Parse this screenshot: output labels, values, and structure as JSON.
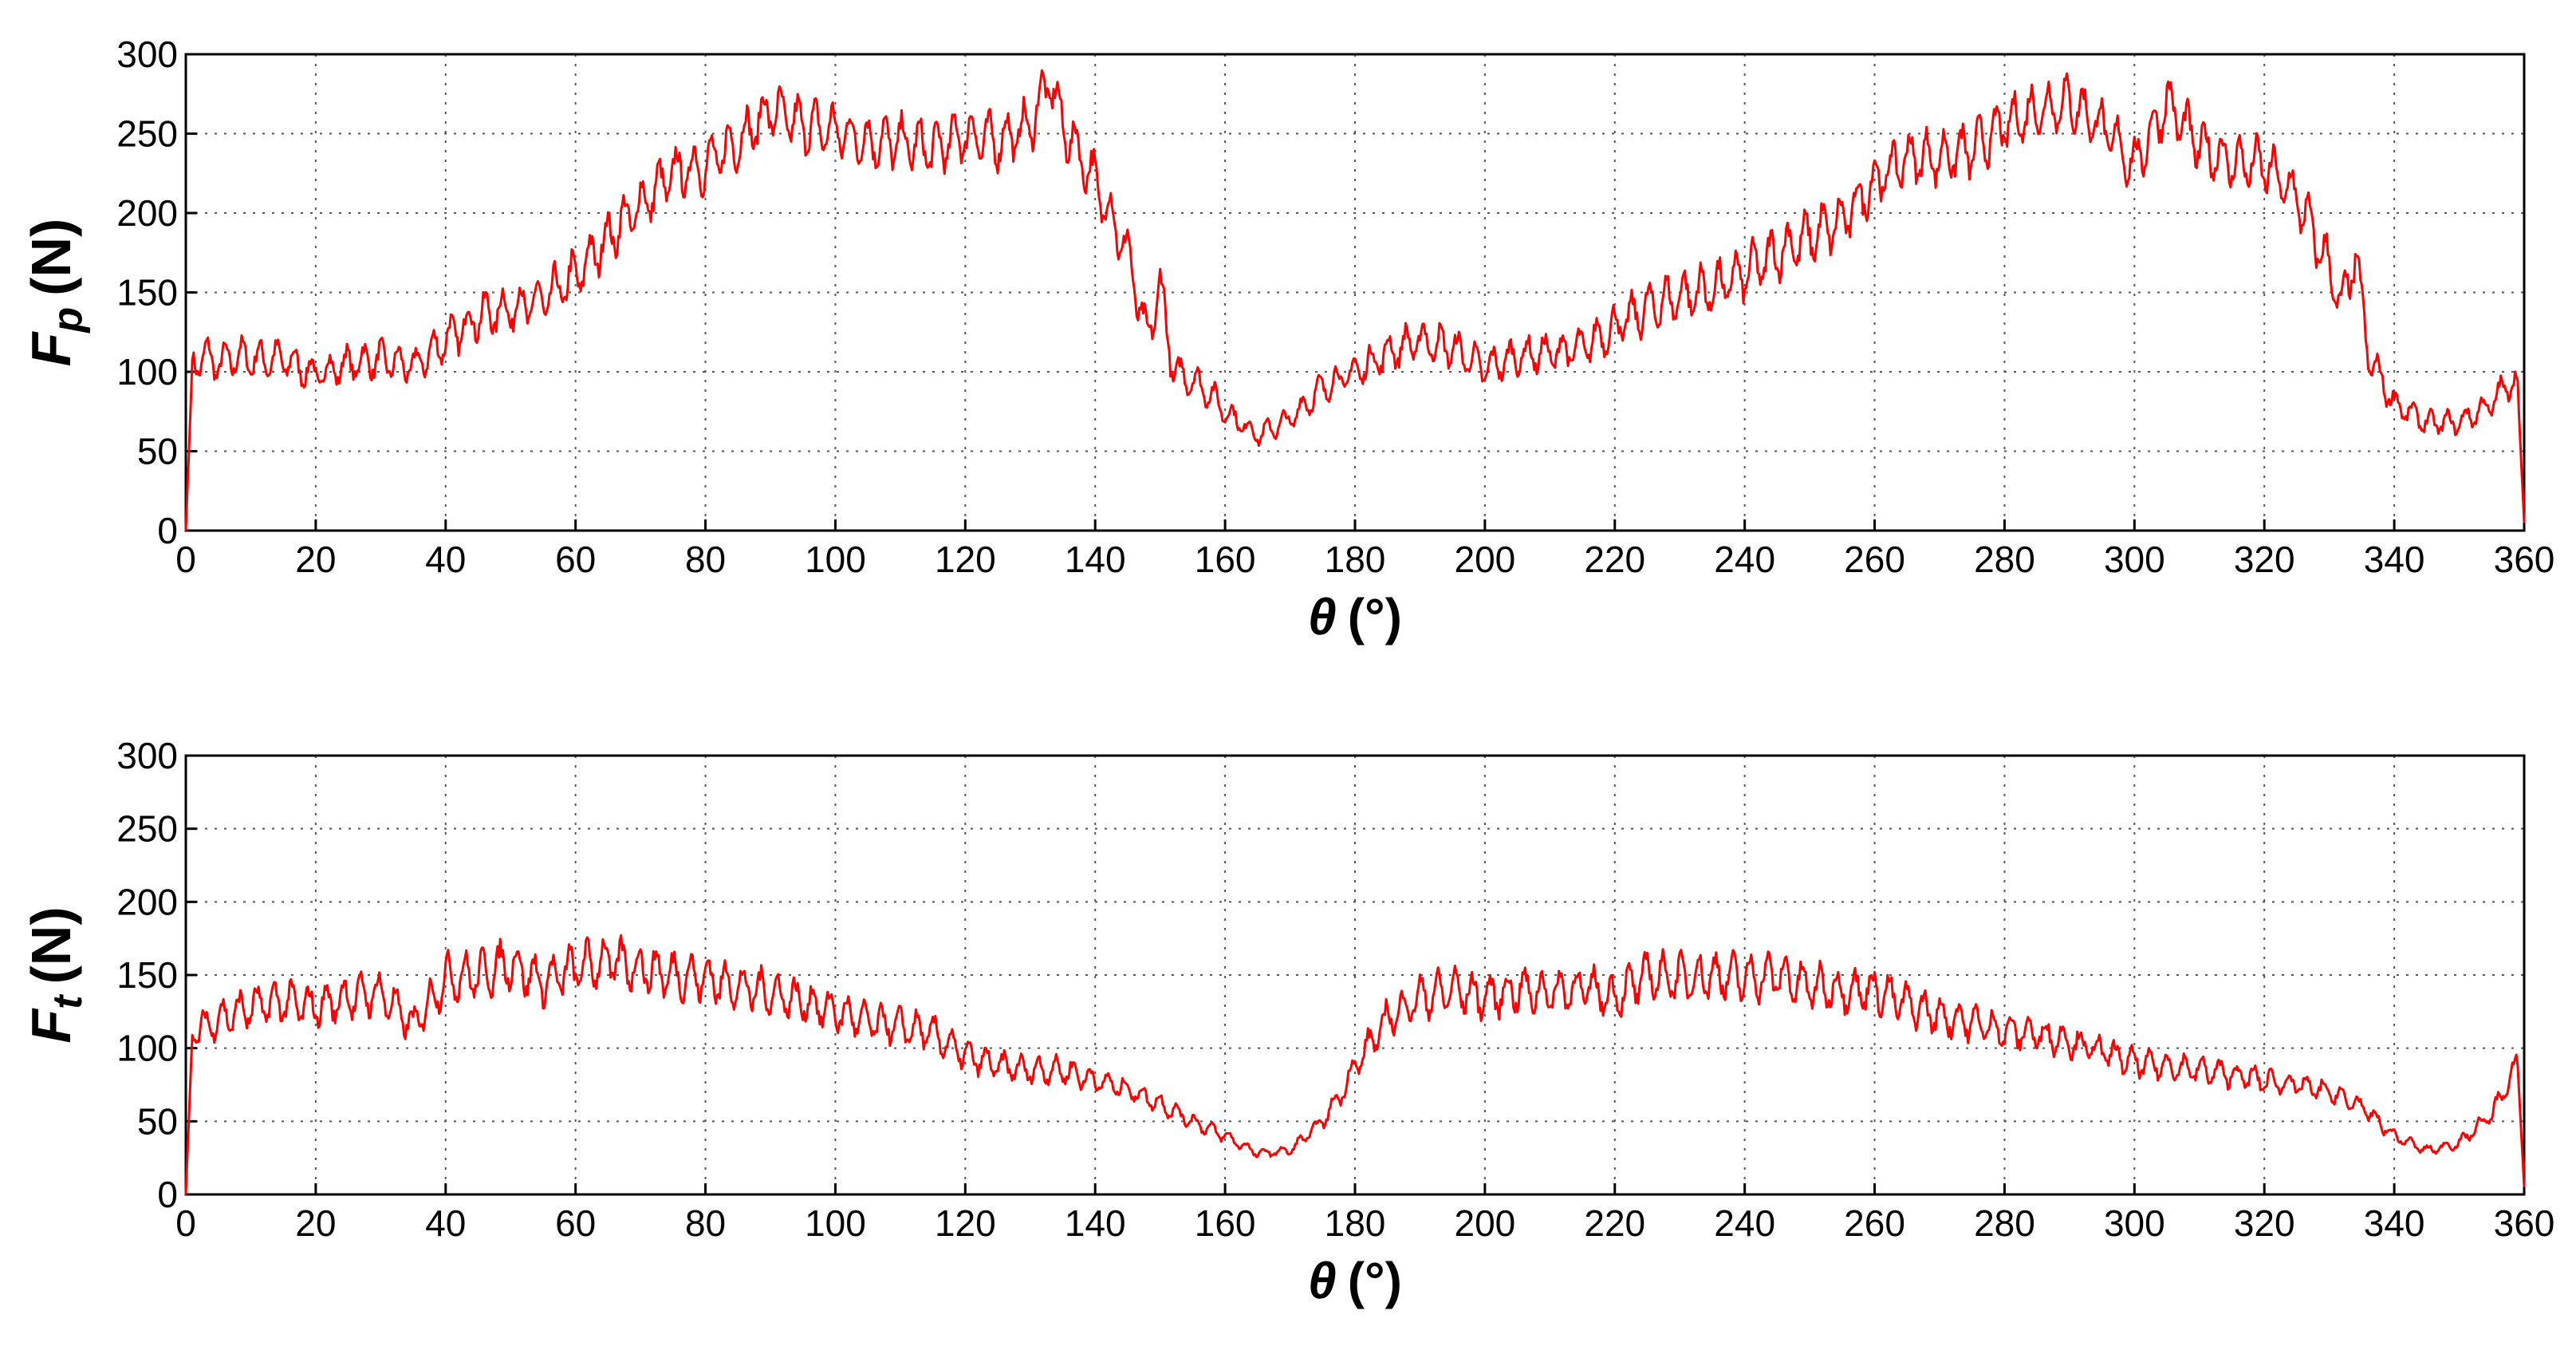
{
  "chart_data": [
    {
      "type": "line",
      "ylabel_main": "F",
      "ylabel_sub": "p",
      "ylabel_unit": "(N)",
      "xlabel_symbol": "θ",
      "xlabel_unit": "(°)",
      "xlim": [
        0,
        360
      ],
      "ylim": [
        0,
        300
      ],
      "xticks": [
        0,
        20,
        40,
        60,
        80,
        100,
        120,
        140,
        160,
        180,
        200,
        220,
        240,
        260,
        280,
        300,
        320,
        340,
        360
      ],
      "yticks": [
        0,
        50,
        100,
        150,
        200,
        250,
        300
      ],
      "grid": true,
      "color": "#ff0000",
      "x": [
        0,
        1,
        3,
        5,
        8,
        10,
        15,
        20,
        25,
        30,
        35,
        40,
        45,
        50,
        55,
        60,
        65,
        70,
        75,
        80,
        85,
        90,
        95,
        100,
        105,
        110,
        115,
        120,
        125,
        130,
        133,
        135,
        140,
        145,
        148,
        150,
        152,
        155,
        158,
        160,
        165,
        170,
        175,
        180,
        185,
        190,
        195,
        200,
        205,
        210,
        215,
        220,
        225,
        230,
        235,
        240,
        245,
        250,
        255,
        260,
        265,
        270,
        275,
        280,
        285,
        290,
        295,
        300,
        305,
        310,
        315,
        320,
        325,
        330,
        332,
        334,
        336,
        340,
        345,
        350,
        355,
        358,
        359,
        360
      ],
      "y": [
        0,
        105,
        110,
        105,
        110,
        108,
        108,
        98,
        105,
        108,
        103,
        120,
        135,
        140,
        145,
        160,
        185,
        205,
        225,
        230,
        245,
        265,
        255,
        252,
        245,
        245,
        240,
        250,
        245,
        255,
        285,
        255,
        220,
        175,
        120,
        155,
        100,
        95,
        85,
        75,
        60,
        70,
        90,
        100,
        112,
        120,
        115,
        102,
        110,
        112,
        115,
        128,
        140,
        148,
        152,
        162,
        175,
        185,
        195,
        220,
        235,
        235,
        240,
        255,
        265,
        270,
        255,
        230,
        270,
        242,
        232,
        230,
        210,
        165,
        140,
        175,
        110,
        80,
        68,
        68,
        80,
        95,
        90,
        5
      ]
    },
    {
      "type": "line",
      "ylabel_main": "F",
      "ylabel_sub": "t",
      "ylabel_unit": "(N)",
      "xlabel_symbol": "θ",
      "xlabel_unit": "(°)",
      "xlim": [
        0,
        360
      ],
      "ylim": [
        0,
        300
      ],
      "xticks": [
        0,
        20,
        40,
        60,
        80,
        100,
        120,
        140,
        160,
        180,
        200,
        220,
        240,
        260,
        280,
        300,
        320,
        340,
        360
      ],
      "yticks": [
        0,
        50,
        100,
        150,
        200,
        250,
        300
      ],
      "grid": true,
      "color": "#ff0000",
      "x": [
        0,
        1,
        3,
        5,
        10,
        15,
        20,
        25,
        30,
        35,
        40,
        45,
        50,
        55,
        60,
        65,
        70,
        75,
        80,
        85,
        90,
        95,
        100,
        105,
        110,
        115,
        120,
        125,
        130,
        135,
        140,
        145,
        150,
        155,
        160,
        165,
        170,
        175,
        178,
        180,
        185,
        190,
        195,
        200,
        205,
        210,
        215,
        220,
        225,
        230,
        235,
        240,
        245,
        250,
        255,
        260,
        265,
        270,
        275,
        280,
        285,
        290,
        295,
        300,
        305,
        310,
        315,
        320,
        325,
        330,
        335,
        340,
        345,
        350,
        355,
        358,
        359,
        360
      ],
      "y": [
        0,
        110,
        115,
        120,
        128,
        132,
        128,
        135,
        138,
        115,
        148,
        150,
        158,
        145,
        155,
        160,
        155,
        150,
        148,
        142,
        138,
        132,
        125,
        118,
        115,
        110,
        95,
        88,
        85,
        85,
        78,
        72,
        62,
        50,
        40,
        28,
        30,
        50,
        70,
        88,
        120,
        135,
        140,
        135,
        140,
        138,
        142,
        135,
        150,
        148,
        150,
        148,
        150,
        142,
        140,
        140,
        130,
        122,
        118,
        112,
        110,
        105,
        98,
        90,
        88,
        85,
        82,
        78,
        75,
        70,
        60,
        40,
        30,
        35,
        55,
        80,
        88,
        5
      ]
    }
  ]
}
